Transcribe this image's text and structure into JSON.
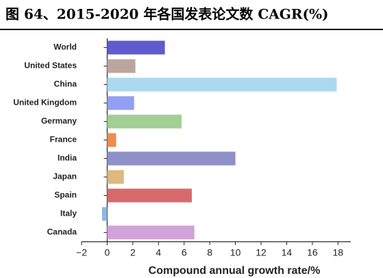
{
  "chart_data": {
    "type": "barh",
    "title": "图 64、2015-2020 年各国发表论文数 CAGR(%)",
    "xlabel": "Compound annual growth rate/%",
    "categories": [
      "World",
      "United States",
      "China",
      "United Kingdom",
      "Germany",
      "France",
      "India",
      "Japan",
      "Spain",
      "Italy",
      "Canada"
    ],
    "values": [
      4.5,
      2.2,
      17.9,
      2.1,
      5.8,
      0.7,
      10.0,
      1.3,
      6.6,
      -0.4,
      6.8
    ],
    "colors": [
      "#5f5ad0",
      "#bda59f",
      "#acd8f0",
      "#939ff2",
      "#a2cf93",
      "#f08b4c",
      "#8f90c7",
      "#dcb97c",
      "#d86a6b",
      "#92b7db",
      "#d2a2d8"
    ],
    "xlim": [
      -2,
      19
    ],
    "xticks": [
      {
        "value": -2,
        "label": "−2"
      },
      0,
      2,
      4,
      6,
      8,
      10,
      12,
      14,
      16,
      18
    ]
  }
}
